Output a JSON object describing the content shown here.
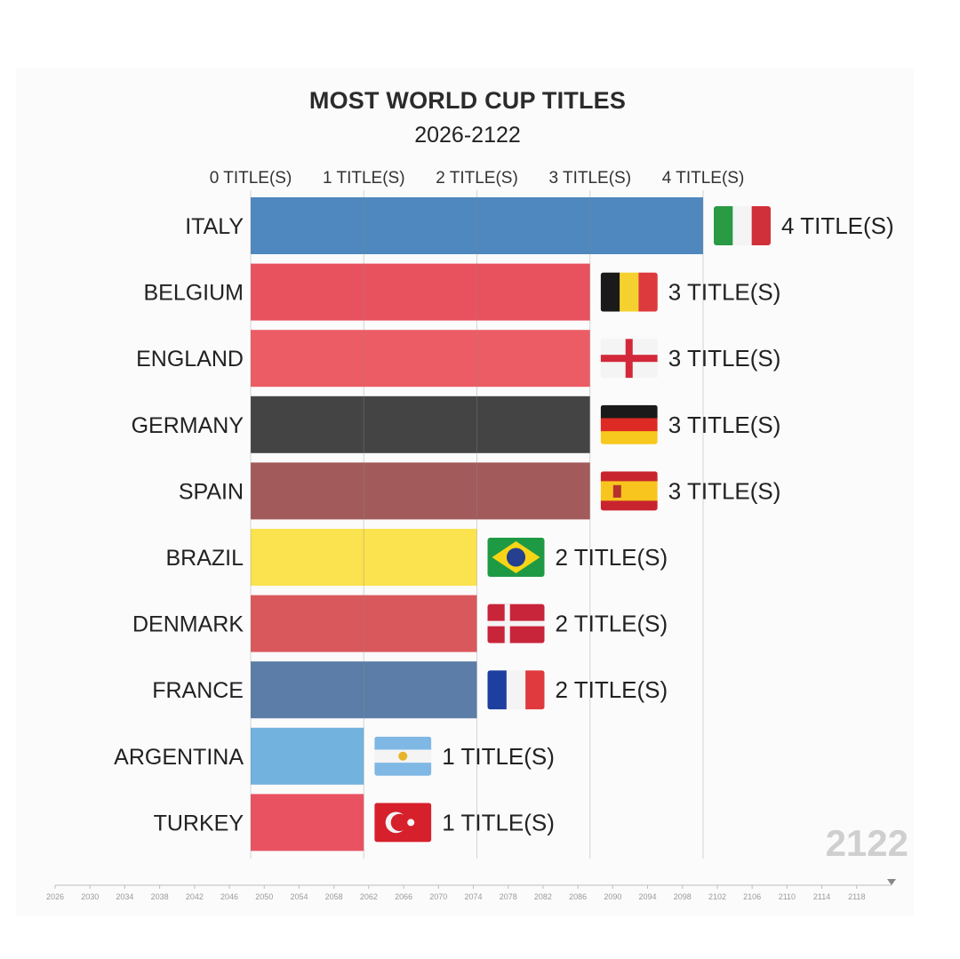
{
  "title": "MOST WORLD CUP TITLES",
  "subtitle": "2026-2122",
  "current_year": "2122",
  "colors": {
    "background": "#fcfbfb",
    "gridline": "#8a8a8a",
    "timeline": "#bdbdbd"
  },
  "chart_data": {
    "type": "bar",
    "orientation": "horizontal",
    "title": "MOST WORLD CUP TITLES",
    "subtitle": "2026-2122",
    "xlim": [
      0,
      4
    ],
    "x_ticks": [
      "0 TITLE(S)",
      "1 TITLE(S)",
      "2 TITLE(S)",
      "3 TITLE(S)",
      "4 TITLE(S)"
    ],
    "categories": [
      "ITALY",
      "BELGIUM",
      "ENGLAND",
      "GERMANY",
      "SPAIN",
      "BRAZIL",
      "DENMARK",
      "FRANCE",
      "ARGENTINA",
      "TURKEY"
    ],
    "values": [
      4,
      3,
      3,
      3,
      3,
      2,
      2,
      2,
      1,
      1
    ],
    "data_labels": [
      "4 TITLE(S)",
      "3 TITLE(S)",
      "3 TITLE(S)",
      "3 TITLE(S)",
      "3 TITLE(S)",
      "2 TITLE(S)",
      "2 TITLE(S)",
      "2 TITLE(S)",
      "1 TITLE(S)",
      "1 TITLE(S)"
    ],
    "bar_colors": [
      "#4e88be",
      "#e8525e",
      "#ec5c64",
      "#444444",
      "#a25a5a",
      "#fbe24f",
      "#d9585c",
      "#5b7da8",
      "#72b2de",
      "#e95260"
    ],
    "flags": [
      "italy-flag-icon",
      "belgium-flag-icon",
      "england-flag-icon",
      "germany-flag-icon",
      "spain-flag-icon",
      "brazil-flag-icon",
      "denmark-flag-icon",
      "france-flag-icon",
      "argentina-flag-icon",
      "turkey-flag-icon"
    ],
    "grid": true,
    "timeline": {
      "ticks": [
        "2026",
        "2030",
        "2034",
        "2038",
        "2042",
        "2046",
        "2050",
        "2054",
        "2058",
        "2062",
        "2066",
        "2070",
        "2074",
        "2078",
        "2082",
        "2086",
        "2090",
        "2094",
        "2098",
        "2102",
        "2106",
        "2110",
        "2114",
        "2118"
      ],
      "range": [
        2026,
        2122
      ],
      "current": 2122
    }
  }
}
